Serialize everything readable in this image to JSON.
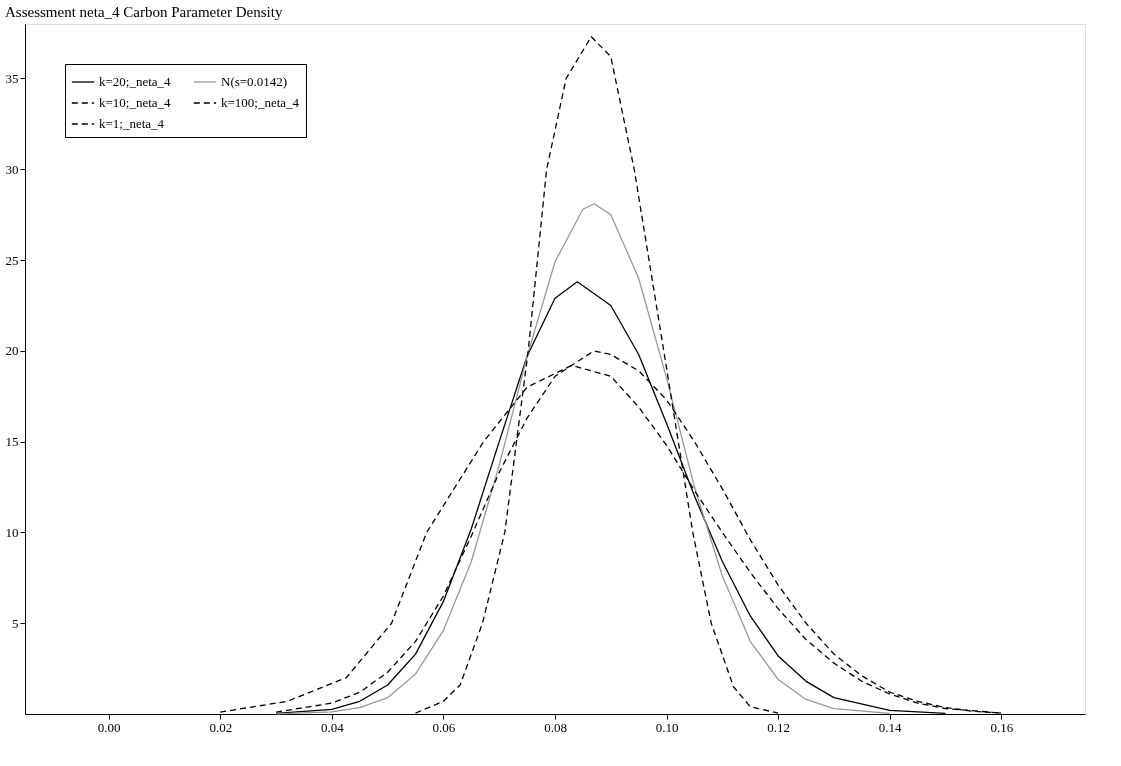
{
  "chart_data": {
    "type": "line",
    "title": "Assessment neta_4 Carbon Parameter Density",
    "xlim": [
      -0.015,
      0.175
    ],
    "ylim": [
      0,
      38
    ],
    "xticks": [
      {
        "value": 0,
        "label": "0.00"
      },
      {
        "value": 0.02,
        "label": "0.02"
      },
      {
        "value": 0.04,
        "label": "0.04"
      },
      {
        "value": 0.06,
        "label": "0.06"
      },
      {
        "value": 0.08,
        "label": "0.08"
      },
      {
        "value": 0.1,
        "label": "0.10"
      },
      {
        "value": 0.12,
        "label": "0.12"
      },
      {
        "value": 0.14,
        "label": "0.14"
      },
      {
        "value": 0.16,
        "label": "0.16"
      }
    ],
    "yticks": [
      5,
      10,
      15,
      20,
      25,
      30,
      35
    ],
    "grid": false,
    "legend": "top left",
    "marker": "none",
    "series": [
      {
        "name": "k=20;_neta_4",
        "color": "#000000",
        "line_style": "solid",
        "x": [
          0.03,
          0.04,
          0.045,
          0.05,
          0.055,
          0.06,
          0.065,
          0.07,
          0.075,
          0.08,
          0.084,
          0.09,
          0.095,
          0.1,
          0.105,
          0.11,
          0.115,
          0.12,
          0.125,
          0.13,
          0.14,
          0.15
        ],
        "values": [
          0.03,
          0.25,
          0.7,
          1.6,
          3.3,
          6.2,
          10.2,
          15.0,
          19.7,
          22.9,
          23.8,
          22.5,
          19.8,
          16.0,
          12.0,
          8.4,
          5.4,
          3.2,
          1.8,
          0.9,
          0.2,
          0.03
        ]
      },
      {
        "name": "N(s=0.0142)",
        "color": "#999999",
        "line_style": "solid",
        "x": [
          0.03,
          0.04,
          0.045,
          0.05,
          0.055,
          0.06,
          0.065,
          0.07,
          0.075,
          0.08,
          0.085,
          0.087,
          0.09,
          0.095,
          0.1,
          0.105,
          0.11,
          0.115,
          0.12,
          0.125,
          0.13,
          0.14
        ],
        "values": [
          0.01,
          0.12,
          0.35,
          0.9,
          2.2,
          4.6,
          8.4,
          13.7,
          19.7,
          24.9,
          27.8,
          28.1,
          27.5,
          24.0,
          18.5,
          12.5,
          7.6,
          4.0,
          1.9,
          0.8,
          0.3,
          0.03
        ]
      },
      {
        "name": "k=10;_neta_4",
        "color": "#000000",
        "line_style": "dashed",
        "x": [
          0.03,
          0.04,
          0.045,
          0.05,
          0.055,
          0.06,
          0.065,
          0.07,
          0.075,
          0.08,
          0.087,
          0.09,
          0.095,
          0.1,
          0.105,
          0.11,
          0.115,
          0.12,
          0.125,
          0.13,
          0.135,
          0.14,
          0.145,
          0.15,
          0.155,
          0.16
        ],
        "values": [
          0.1,
          0.6,
          1.2,
          2.3,
          4.0,
          6.5,
          9.8,
          13.3,
          16.3,
          18.6,
          20.0,
          19.8,
          18.9,
          17.3,
          15.0,
          12.4,
          9.6,
          7.1,
          5.0,
          3.3,
          2.1,
          1.2,
          0.7,
          0.35,
          0.15,
          0.05
        ]
      },
      {
        "name": "k=100;_neta_4",
        "color": "#000000",
        "line_style": "dashed",
        "x": [
          0.02,
          0.032,
          0.0426,
          0.0507,
          0.057,
          0.0672,
          0.075,
          0.083,
          0.09,
          0.095,
          0.1,
          0.105,
          0.11,
          0.115,
          0.12,
          0.125,
          0.13,
          0.135,
          0.14,
          0.145,
          0.15,
          0.16
        ],
        "values": [
          0.1,
          0.7,
          2.0,
          5.0,
          10.0,
          15.0,
          18.0,
          19.2,
          18.6,
          16.9,
          14.8,
          12.3,
          10.0,
          7.8,
          5.8,
          4.1,
          2.8,
          1.8,
          1.1,
          0.6,
          0.3,
          0.05
        ]
      },
      {
        "name": "k=1;_neta_4",
        "color": "#000000",
        "line_style": "dashed",
        "x": [
          0.055,
          0.06,
          0.063,
          0.067,
          0.071,
          0.0752,
          0.0785,
          0.082,
          0.0865,
          0.09,
          0.0942,
          0.0995,
          0.1047,
          0.108,
          0.112,
          0.115,
          0.12
        ],
        "values": [
          0.05,
          0.7,
          1.6,
          5.0,
          10.0,
          20.0,
          30.0,
          35.0,
          37.3,
          36.2,
          30.0,
          20.0,
          10.0,
          5.0,
          1.5,
          0.4,
          0.05
        ]
      }
    ]
  }
}
